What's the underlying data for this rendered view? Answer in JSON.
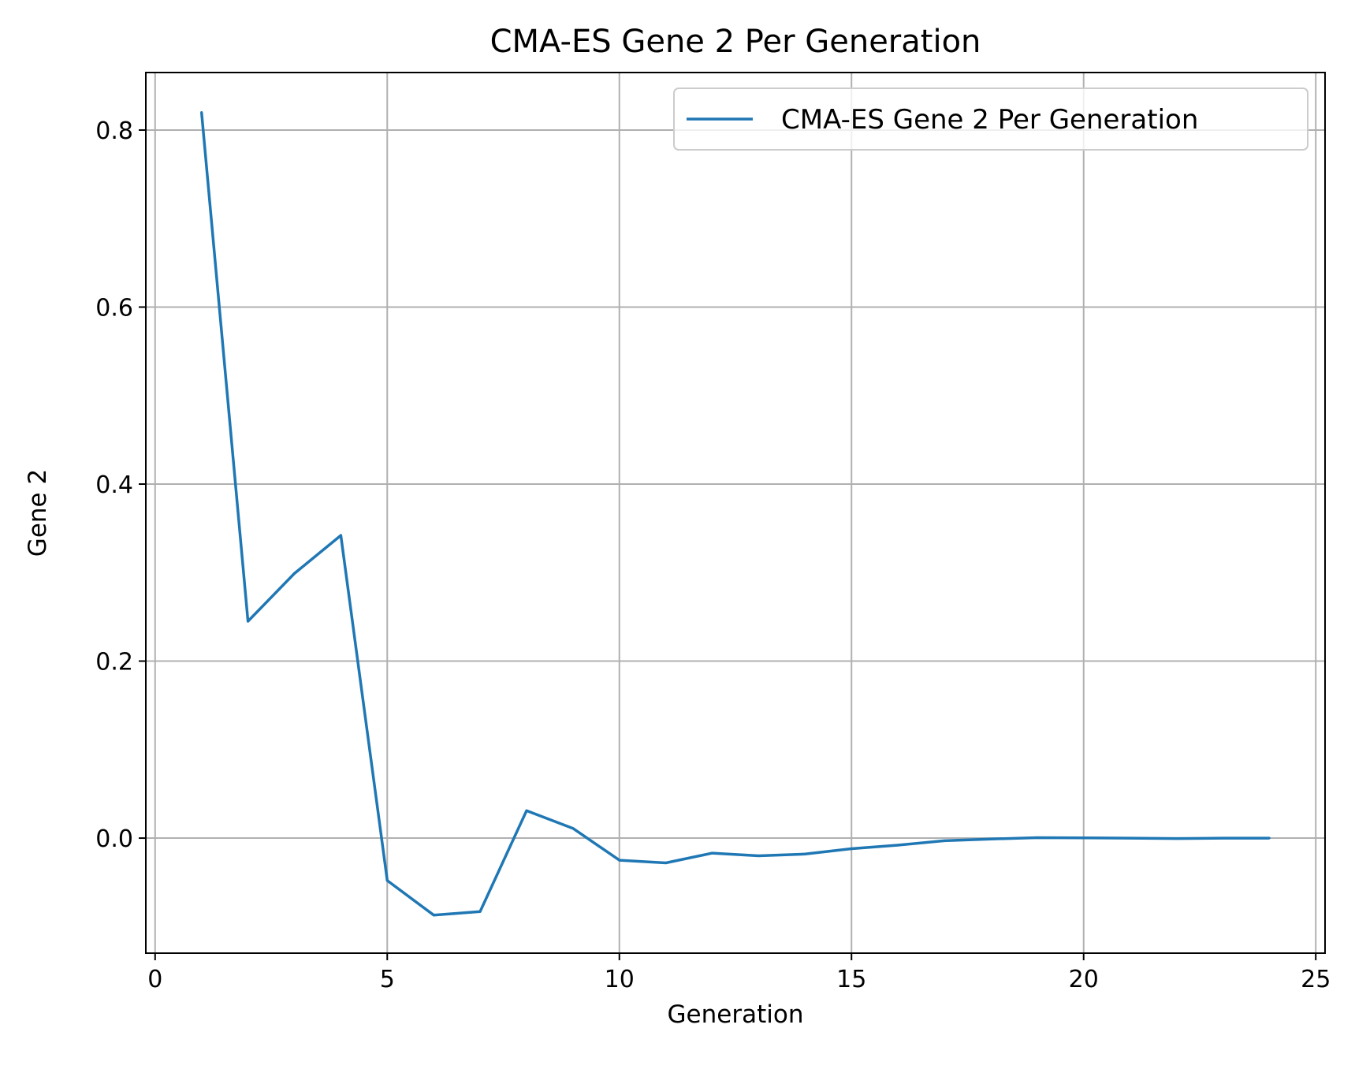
{
  "chart_data": {
    "type": "line",
    "title": "CMA-ES Gene 2 Per Generation",
    "xlabel": "Generation",
    "ylabel": "Gene 2",
    "xlim": [
      -0.2,
      25.2
    ],
    "ylim": [
      -0.13,
      0.865
    ],
    "xticks": [
      0,
      5,
      10,
      15,
      20,
      25
    ],
    "xtick_labels": [
      "0",
      "5",
      "10",
      "15",
      "20",
      "25"
    ],
    "yticks": [
      0.0,
      0.2,
      0.4,
      0.6,
      0.8
    ],
    "ytick_labels": [
      "0.0",
      "0.2",
      "0.4",
      "0.6",
      "0.8"
    ],
    "grid": true,
    "legend_position": "top-right",
    "series": [
      {
        "name": "CMA-ES Gene 2 Per Generation",
        "color": "#1f77b4",
        "x": [
          1,
          2,
          3,
          4,
          5,
          6,
          7,
          8,
          9,
          10,
          11,
          12,
          13,
          14,
          15,
          16,
          17,
          18,
          19,
          20,
          21,
          22,
          23,
          24
        ],
        "y": [
          0.82,
          0.245,
          0.299,
          0.342,
          -0.048,
          -0.087,
          -0.083,
          0.031,
          0.011,
          -0.025,
          -0.028,
          -0.017,
          -0.02,
          -0.018,
          -0.012,
          -0.008,
          -0.003,
          -0.001,
          0.0005,
          0.0003,
          0.0,
          -0.0005,
          0.0,
          0.0
        ]
      }
    ]
  }
}
